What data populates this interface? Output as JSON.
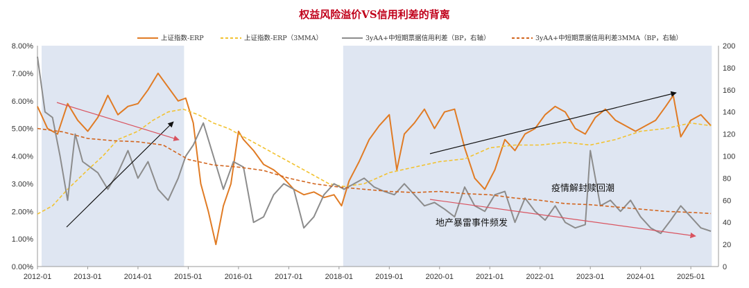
{
  "chart_data": {
    "type": "line",
    "title": "权益风险溢价VS信用利差的背离",
    "x_ticks": [
      "2012-01",
      "2013-01",
      "2014-01",
      "2015-01",
      "2016-01",
      "2017-01",
      "2018-01",
      "2019-01",
      "2020-01",
      "2021-01",
      "2022-01",
      "2023-01",
      "2024-01",
      "2025-01"
    ],
    "y_left": {
      "ticks": [
        "0.00%",
        "1.00%",
        "2.00%",
        "3.00%",
        "4.00%",
        "5.00%",
        "6.00%",
        "7.00%",
        "8.00%"
      ],
      "range": [
        0,
        8
      ]
    },
    "y_right": {
      "ticks": [
        "0",
        "20",
        "40",
        "60",
        "80",
        "100",
        "120",
        "140",
        "160",
        "180",
        "200"
      ],
      "range": [
        0,
        200
      ]
    },
    "shaded_periods": [
      {
        "start": "2012-01",
        "end": "2014-12"
      },
      {
        "start": "2018-01",
        "end": "2025-06"
      }
    ],
    "legend_position": "top",
    "grid": false,
    "series": [
      {
        "name": "上证指数-ERP",
        "axis": "left",
        "color": "#e07b24",
        "style": "solid",
        "x": [
          2012.0,
          2012.2,
          2012.4,
          2012.6,
          2012.8,
          2013.0,
          2013.2,
          2013.4,
          2013.6,
          2013.8,
          2014.0,
          2014.2,
          2014.4,
          2014.6,
          2014.8,
          2014.95,
          2015.1,
          2015.25,
          2015.4,
          2015.55,
          2015.7,
          2015.85,
          2016.0,
          2016.1,
          2016.3,
          2016.5,
          2016.7,
          2016.9,
          2017.1,
          2017.3,
          2017.5,
          2017.7,
          2017.9,
          2018.05,
          2018.2,
          2018.4,
          2018.6,
          2018.8,
          2019.0,
          2019.15,
          2019.3,
          2019.5,
          2019.7,
          2019.9,
          2020.1,
          2020.3,
          2020.5,
          2020.7,
          2020.9,
          2021.1,
          2021.3,
          2021.5,
          2021.7,
          2021.9,
          2022.1,
          2022.3,
          2022.5,
          2022.7,
          2022.9,
          2023.1,
          2023.3,
          2023.5,
          2023.7,
          2023.9,
          2024.1,
          2024.3,
          2024.5,
          2024.65,
          2024.8,
          2025.0,
          2025.2,
          2025.4
        ],
        "values": [
          5.8,
          5.0,
          4.8,
          5.9,
          5.3,
          4.9,
          5.4,
          6.2,
          5.5,
          5.8,
          5.9,
          6.4,
          7.0,
          6.5,
          6.0,
          6.1,
          5.2,
          3.0,
          2.0,
          0.8,
          2.2,
          3.0,
          4.9,
          4.6,
          4.2,
          3.7,
          3.5,
          3.2,
          2.8,
          2.6,
          2.7,
          2.5,
          2.6,
          2.2,
          3.1,
          3.8,
          4.6,
          5.1,
          5.5,
          3.5,
          4.8,
          5.2,
          5.7,
          5.0,
          5.6,
          5.7,
          4.3,
          3.2,
          2.8,
          3.5,
          4.6,
          4.2,
          4.8,
          5.0,
          5.5,
          5.8,
          5.6,
          5.0,
          4.8,
          5.4,
          5.7,
          5.3,
          5.1,
          4.9,
          5.1,
          5.3,
          5.8,
          6.2,
          4.7,
          5.3,
          5.5,
          5.1
        ]
      },
      {
        "name": "上证指数-ERP（3MMA）",
        "axis": "left",
        "color": "#f2c230",
        "style": "dashed",
        "x": [
          2012.0,
          2012.3,
          2012.6,
          2013.0,
          2013.3,
          2013.6,
          2014.0,
          2014.3,
          2014.6,
          2014.9,
          2015.2,
          2015.5,
          2015.8,
          2016.2,
          2016.6,
          2017.0,
          2017.4,
          2017.8,
          2018.1,
          2018.5,
          2019.0,
          2019.5,
          2020.0,
          2020.5,
          2021.0,
          2021.5,
          2022.0,
          2022.5,
          2023.0,
          2023.5,
          2024.0,
          2024.5,
          2025.0,
          2025.4
        ],
        "values": [
          1.9,
          2.2,
          2.8,
          3.5,
          4.0,
          4.6,
          4.9,
          5.3,
          5.6,
          5.7,
          5.5,
          5.2,
          5.0,
          4.6,
          4.2,
          3.8,
          3.4,
          3.0,
          2.9,
          3.0,
          3.4,
          3.6,
          3.8,
          3.9,
          4.3,
          4.4,
          4.4,
          4.5,
          4.4,
          4.6,
          4.9,
          5.0,
          5.2,
          5.1
        ]
      },
      {
        "name": "3yAA+中短期票据信用利差（BP，右轴）",
        "axis": "right",
        "color": "#8c8c8c",
        "style": "solid",
        "x": [
          2012.0,
          2012.15,
          2012.3,
          2012.45,
          2012.6,
          2012.75,
          2012.9,
          2013.05,
          2013.2,
          2013.4,
          2013.6,
          2013.8,
          2014.0,
          2014.2,
          2014.4,
          2014.6,
          2014.8,
          2014.95,
          2015.1,
          2015.3,
          2015.5,
          2015.7,
          2015.9,
          2016.1,
          2016.3,
          2016.5,
          2016.7,
          2016.9,
          2017.1,
          2017.3,
          2017.5,
          2017.7,
          2017.9,
          2018.1,
          2018.3,
          2018.5,
          2018.7,
          2018.9,
          2019.1,
          2019.3,
          2019.5,
          2019.7,
          2019.9,
          2020.1,
          2020.3,
          2020.5,
          2020.7,
          2020.9,
          2021.1,
          2021.3,
          2021.5,
          2021.7,
          2021.9,
          2022.1,
          2022.3,
          2022.5,
          2022.7,
          2022.9,
          2023.0,
          2023.2,
          2023.4,
          2023.6,
          2023.8,
          2024.0,
          2024.2,
          2024.4,
          2024.6,
          2024.8,
          2025.0,
          2025.2,
          2025.4
        ],
        "values": [
          190,
          140,
          135,
          100,
          60,
          120,
          95,
          90,
          85,
          70,
          85,
          105,
          80,
          95,
          70,
          60,
          80,
          100,
          110,
          130,
          100,
          70,
          95,
          90,
          40,
          45,
          65,
          75,
          70,
          35,
          45,
          65,
          75,
          70,
          75,
          80,
          72,
          68,
          65,
          75,
          65,
          55,
          58,
          52,
          45,
          72,
          55,
          50,
          65,
          68,
          40,
          62,
          50,
          42,
          55,
          40,
          35,
          38,
          105,
          55,
          60,
          50,
          60,
          45,
          35,
          30,
          42,
          55,
          45,
          35,
          32
        ]
      },
      {
        "name": "3yAA+中短期票据信用利差3MMA（BP，右轴）",
        "axis": "right",
        "color": "#d2651e",
        "style": "dashed",
        "x": [
          2012.0,
          2012.5,
          2013.0,
          2013.5,
          2014.0,
          2014.5,
          2015.0,
          2015.5,
          2016.0,
          2016.5,
          2017.0,
          2017.5,
          2018.0,
          2018.5,
          2019.0,
          2019.5,
          2020.0,
          2020.5,
          2021.0,
          2021.5,
          2022.0,
          2022.5,
          2023.0,
          2023.5,
          2024.0,
          2024.5,
          2025.0,
          2025.4
        ],
        "values": [
          125,
          122,
          116,
          114,
          113,
          110,
          97,
          92,
          90,
          87,
          80,
          75,
          72,
          70,
          68,
          67,
          68,
          66,
          65,
          62,
          60,
          57,
          56,
          54,
          52,
          50,
          49,
          48
        ]
      }
    ],
    "annotations": [
      "疫情解封赎回潮",
      "地产暴雷事件频发"
    ]
  }
}
